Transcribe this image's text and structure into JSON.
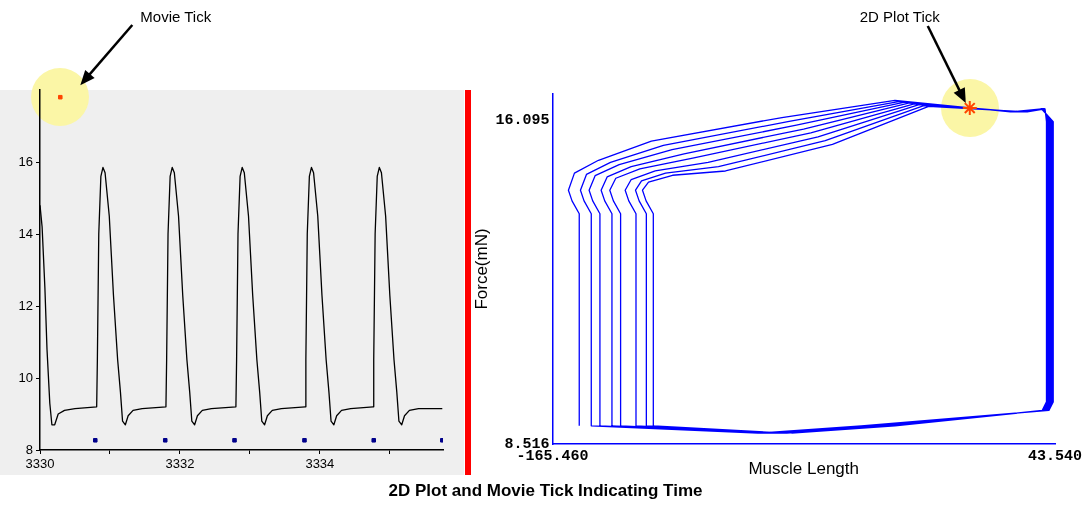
{
  "chart_data": [
    {
      "type": "line",
      "xlim": [
        3330,
        3335.76
      ],
      "ylim": [
        8,
        18
      ],
      "xticks": [
        3330,
        {
          "value": 3331,
          "label": null
        },
        3332,
        {
          "value": 3333,
          "label": null
        },
        3334,
        {
          "value": 3335,
          "label": null
        }
      ],
      "yticks": [
        8,
        10,
        12,
        14,
        16
      ],
      "grid": false,
      "legend": false,
      "marker": "none",
      "series": [
        {
          "type": "scatter",
          "name": "Movie Tick",
          "color": "#ff4500",
          "marker": "square",
          "x": [
            3330.29
          ],
          "values": [
            17.8
          ]
        },
        {
          "type": "scatter",
          "color": "#00008b",
          "marker": "square",
          "x": [
            3330.79,
            3331.79,
            3332.78,
            3333.78,
            3334.77,
            3335.75
          ],
          "values": [
            8.27,
            8.27,
            8.27,
            8.27,
            8.27,
            8.27
          ]
        },
        {
          "color": "#000000",
          "x": [
            3330,
            3330.03,
            3330.07,
            3330.1,
            3330.14,
            3330.17,
            3330.21,
            3330.26,
            3330.35,
            3330.5,
            3330.81,
            3330.82,
            3330.84,
            3330.87,
            3330.9,
            3330.93,
            3330.99,
            3331.05,
            3331.11,
            3331.15,
            3331.18,
            3331.22,
            3331.26,
            3331.33,
            3331.46,
            3331.8,
            3331.81,
            3331.83,
            3331.86,
            3331.89,
            3331.92,
            3331.98,
            3332.04,
            3332.1,
            3332.14,
            3332.17,
            3332.21,
            3332.25,
            3332.32,
            3332.45,
            3332.8,
            3332.81,
            3332.83,
            3332.86,
            3332.89,
            3332.92,
            3332.98,
            3333.04,
            3333.1,
            3333.14,
            3333.17,
            3333.21,
            3333.25,
            3333.32,
            3333.45,
            3333.79,
            3333.8,
            3333.82,
            3333.85,
            3333.88,
            3333.91,
            3333.97,
            3334.03,
            3334.09,
            3334.13,
            3334.16,
            3334.2,
            3334.24,
            3334.31,
            3334.44,
            3334.76,
            3334.77,
            3334.79,
            3334.82,
            3334.85,
            3334.88,
            3334.94,
            3335,
            3335.06,
            3335.1,
            3335.13,
            3335.17,
            3335.21,
            3335.28,
            3335.41,
            3335.75
          ],
          "values": [
            14.8,
            14.2,
            12.5,
            10.8,
            9.3,
            8.7,
            8.7,
            9,
            9.1,
            9.15,
            9.2,
            10.5,
            14,
            15.6,
            15.85,
            15.7,
            14.5,
            12.3,
            10.5,
            9.6,
            8.8,
            8.7,
            8.95,
            9.1,
            9.15,
            9.2,
            10.5,
            14,
            15.6,
            15.85,
            15.7,
            14.5,
            12.3,
            10.5,
            9.6,
            8.8,
            8.7,
            8.95,
            9.1,
            9.15,
            9.2,
            10.5,
            14,
            15.6,
            15.85,
            15.7,
            14.5,
            12.3,
            10.5,
            9.6,
            8.8,
            8.7,
            8.95,
            9.1,
            9.15,
            9.2,
            10.5,
            14,
            15.6,
            15.85,
            15.7,
            14.5,
            12.3,
            10.5,
            9.6,
            8.8,
            8.7,
            8.95,
            9.1,
            9.15,
            9.2,
            10.5,
            14,
            15.6,
            15.85,
            15.7,
            14.5,
            12.3,
            10.5,
            9.6,
            8.8,
            8.7,
            8.95,
            9.1,
            9.15,
            9.15
          ]
        }
      ]
    },
    {
      "type": "line",
      "xlabel": "Muscle Length",
      "ylabel": "Force(mN)",
      "xlim": [
        -165.46,
        43.54
      ],
      "ylim": [
        8.516,
        16.7
      ],
      "xticks": [
        {
          "value": -165.46,
          "label": "-165.460"
        },
        {
          "value": 43.54,
          "label": "43.540"
        }
      ],
      "yticks": [
        8.516,
        16.095
      ],
      "grid": false,
      "legend": false,
      "marker": "none",
      "annotations": [
        "2D Plot and Movie Tick Indicating Time"
      ],
      "series": [
        {
          "color": "#0000ff",
          "x": [
            -154.3,
            -154.3,
            -157.3,
            -158.8,
            -156.3,
            -146.3,
            -124.3,
            -70,
            -23,
            25,
            38,
            42.8,
            42.8,
            41,
            -37,
            -80,
            -149.3,
            -149.3,
            -152.3,
            -153.8,
            -151.3,
            -141.3,
            -119.3,
            -67,
            -21,
            26,
            38.2,
            42.4,
            42.4,
            40.6,
            -35,
            -78,
            -145.7,
            -145.7,
            -148.7,
            -150.2,
            -147.7,
            -137.7,
            -115.7,
            -64,
            -19,
            27,
            38.4,
            42,
            42,
            40.2,
            -33,
            -76,
            -140.7,
            -140.7,
            -143.7,
            -145.2,
            -142.7,
            -132.7,
            -110.7,
            -61,
            -17,
            28,
            38.6,
            41.6,
            41.6,
            39.8,
            -31,
            -74,
            -137.1,
            -137.1,
            -140.1,
            -141.6,
            -139.1,
            -129.1,
            -107.1,
            -58,
            -15,
            29,
            38.8,
            41.2,
            41.2,
            39.4,
            -29,
            -72,
            -130.7,
            -130.7,
            -133.7,
            -135.2,
            -132.7,
            -122.7,
            -100.7,
            -55,
            -13,
            30,
            39,
            40.8,
            40.8,
            39,
            -27,
            -70,
            -126.4,
            -126.4,
            -129.4,
            -130.9,
            -128.4,
            -118.4,
            -96.4,
            -52,
            -11,
            31,
            39.2,
            40.4,
            40.4,
            38.6,
            -25,
            -68,
            -123.5,
            -123.5,
            -126.5,
            -128,
            -125.5,
            -115.5,
            -93.5,
            -49,
            -9,
            32,
            39.4,
            40,
            40,
            38.2,
            -23,
            -66
          ],
          "values": [
            8.94,
            13.9,
            14.2,
            14.45,
            14.85,
            15.15,
            15.6,
            16.15,
            16.55,
            16.28,
            16.35,
            16.05,
            9.5,
            9.3,
            8.94,
            8.77,
            8.94,
            13.9,
            14.2,
            14.45,
            14.82,
            15.1,
            15.5,
            16.06,
            16.53,
            16.28,
            16.35,
            16.05,
            9.5,
            9.3,
            8.94,
            8.77,
            8.94,
            13.9,
            14.2,
            14.45,
            14.79,
            15.05,
            15.4,
            15.97,
            16.51,
            16.28,
            16.35,
            16.05,
            9.5,
            9.3,
            8.94,
            8.77,
            8.94,
            13.9,
            14.2,
            14.45,
            14.76,
            15,
            15.3,
            15.88,
            16.49,
            16.28,
            16.35,
            16.05,
            9.5,
            9.3,
            8.94,
            8.77,
            8.94,
            13.9,
            14.2,
            14.45,
            14.73,
            14.95,
            15.2,
            15.79,
            16.47,
            16.28,
            16.35,
            16.05,
            9.5,
            9.3,
            8.94,
            8.77,
            8.94,
            13.9,
            14.2,
            14.45,
            14.7,
            14.9,
            15.1,
            15.7,
            16.45,
            16.28,
            16.35,
            16.05,
            9.5,
            9.3,
            8.94,
            8.77,
            8.94,
            13.9,
            14.2,
            14.45,
            14.67,
            14.85,
            15,
            15.61,
            16.43,
            16.28,
            16.35,
            16.05,
            9.5,
            9.3,
            8.94,
            8.77,
            8.94,
            13.9,
            14.2,
            14.45,
            14.64,
            14.8,
            14.9,
            15.52,
            16.41,
            16.28,
            16.35,
            16.05,
            9.5,
            9.3,
            8.94,
            8.77
          ]
        },
        {
          "type": "scatter",
          "name": "2D Plot Tick",
          "color": "#ff4500",
          "marker": "cross",
          "x": [
            8.1
          ],
          "values": [
            16.37
          ]
        }
      ]
    }
  ]
}
